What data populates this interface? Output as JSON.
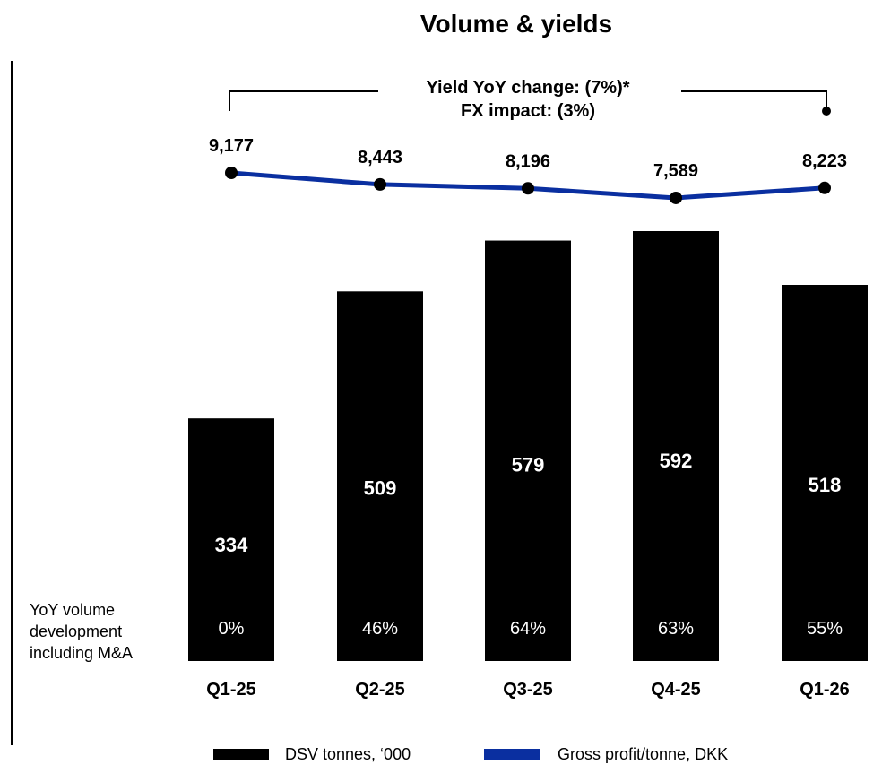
{
  "chart_data": {
    "type": "bar",
    "title": "Volume & yields",
    "categories": [
      "Q1-25",
      "Q2-25",
      "Q3-25",
      "Q4-25",
      "Q1-26"
    ],
    "series": [
      {
        "name": "DSV tonnes, ‘000",
        "type": "bar",
        "values": [
          334,
          509,
          579,
          592,
          518
        ],
        "value_labels": [
          "334",
          "509",
          "579",
          "592",
          "518"
        ],
        "color": "#000000"
      },
      {
        "name": "Gross profit/tonne, DKK",
        "type": "line",
        "values": [
          9177,
          8443,
          8196,
          7589,
          8223
        ],
        "value_labels": [
          "9,177",
          "8,443",
          "8,196",
          "7,589",
          "8,223"
        ],
        "color": "#0a2fa0"
      }
    ],
    "yoy_volume": {
      "label_lines": [
        "YoY volume",
        "development",
        "including M&A"
      ],
      "values": [
        "0%",
        "46%",
        "64%",
        "63%",
        "55%"
      ]
    },
    "annotation": {
      "lines": [
        "Yield YoY change: (7%)*",
        "FX impact: (3%)"
      ]
    },
    "legend": {
      "position": "bottom",
      "items": [
        {
          "label": "DSV tonnes, ‘000",
          "color": "#000000"
        },
        {
          "label": "Gross profit/tonne, DKK",
          "color": "#0a2fa0"
        }
      ]
    }
  }
}
